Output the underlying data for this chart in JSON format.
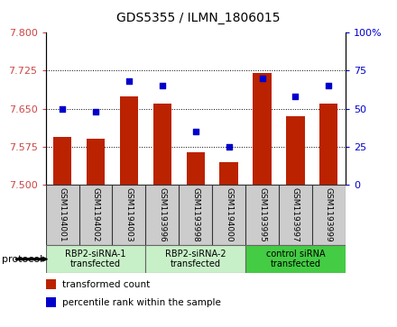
{
  "title": "GDS5355 / ILMN_1806015",
  "samples": [
    "GSM1194001",
    "GSM1194002",
    "GSM1194003",
    "GSM1193996",
    "GSM1193998",
    "GSM1194000",
    "GSM1193995",
    "GSM1193997",
    "GSM1193999"
  ],
  "bar_values": [
    7.595,
    7.59,
    7.675,
    7.66,
    7.565,
    7.545,
    7.72,
    7.635,
    7.66
  ],
  "dot_values": [
    50,
    48,
    68,
    65,
    35,
    25,
    70,
    58,
    65
  ],
  "groups": [
    {
      "label": "RBP2-siRNA-1\ntransfected",
      "start": 0,
      "end": 3,
      "color": "#c8f0c8"
    },
    {
      "label": "RBP2-siRNA-2\ntransfected",
      "start": 3,
      "end": 6,
      "color": "#c8f0c8"
    },
    {
      "label": "control siRNA\ntransfected",
      "start": 6,
      "end": 9,
      "color": "#44cc44"
    }
  ],
  "ymin": 7.5,
  "ymax": 7.8,
  "y2min": 0,
  "y2max": 100,
  "yticks": [
    7.5,
    7.575,
    7.65,
    7.725,
    7.8
  ],
  "y2ticks": [
    0,
    25,
    50,
    75,
    100
  ],
  "bar_color": "#bb2200",
  "dot_color": "#0000cc",
  "bar_bottom": 7.5,
  "legend_bar_label": "transformed count",
  "legend_dot_label": "percentile rank within the sample",
  "protocol_label": "protocol",
  "left_axis_color": "#cc4444",
  "right_axis_color": "#0000cc",
  "sample_box_color": "#cccccc",
  "group_border_color": "#666666"
}
